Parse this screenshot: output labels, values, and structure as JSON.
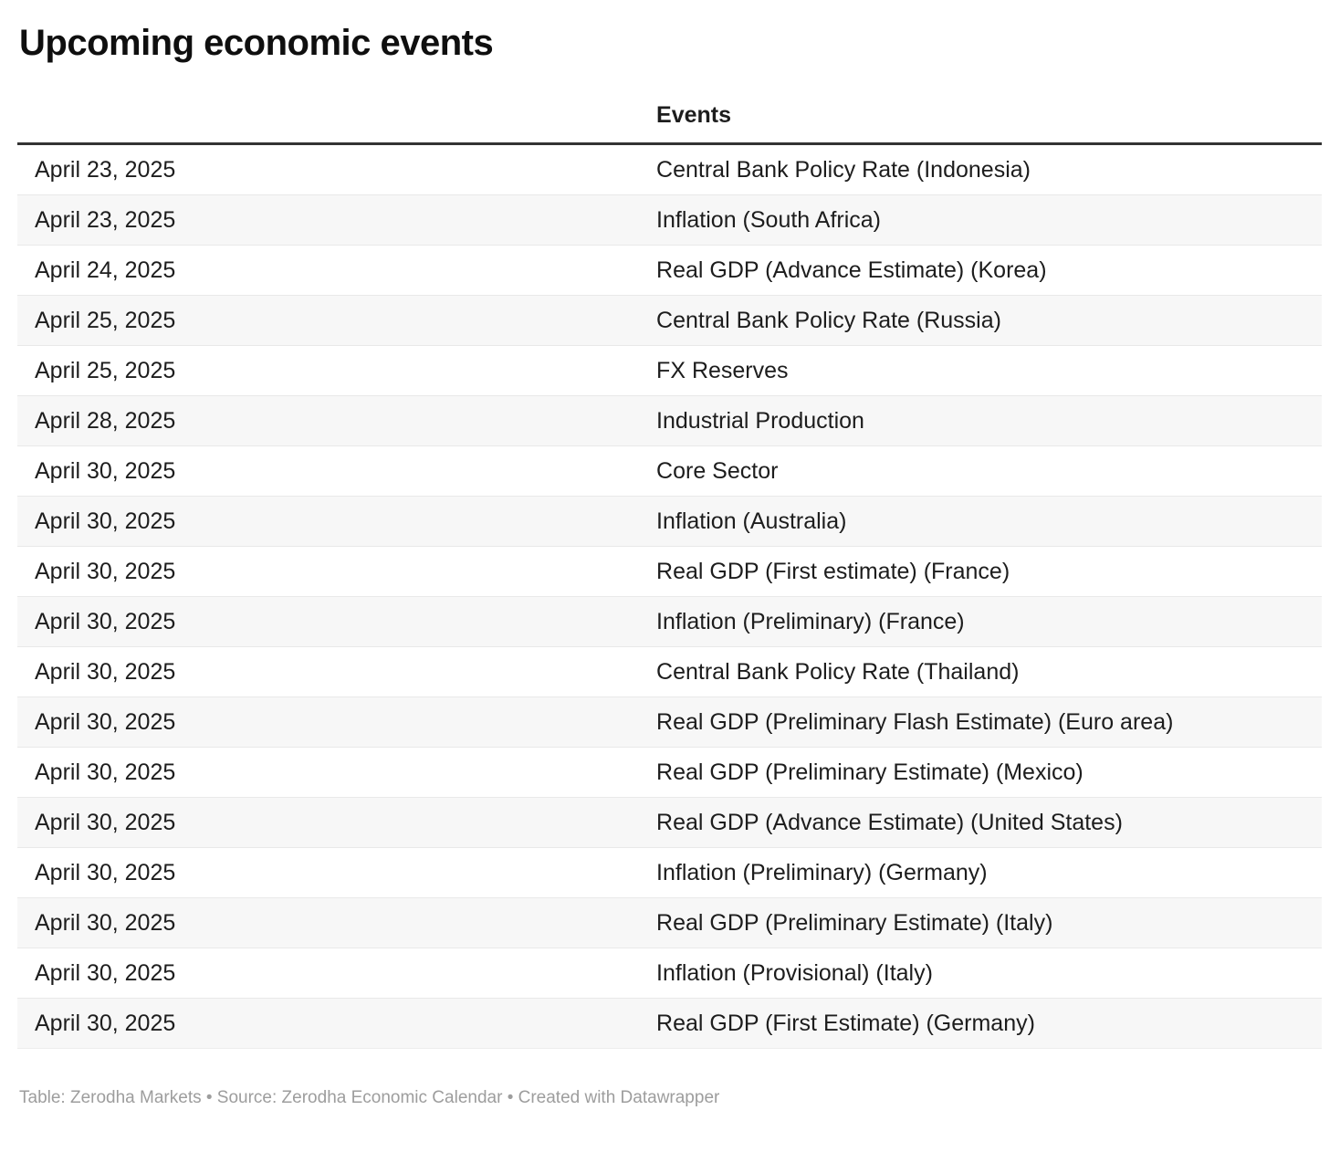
{
  "title": "Upcoming economic events",
  "chart_data": {
    "type": "table",
    "title": "Upcoming economic events",
    "columns": [
      "",
      "Events"
    ],
    "rows": [
      [
        "April 23, 2025",
        "Central Bank Policy Rate (Indonesia)"
      ],
      [
        "April 23, 2025",
        "Inflation (South Africa)"
      ],
      [
        "April 24, 2025",
        "Real GDP (Advance Estimate) (Korea)"
      ],
      [
        "April 25, 2025",
        "Central Bank Policy Rate (Russia)"
      ],
      [
        "April 25, 2025",
        "FX Reserves"
      ],
      [
        "April 28, 2025",
        "Industrial Production"
      ],
      [
        "April 30, 2025",
        "Core Sector"
      ],
      [
        "April 30, 2025",
        "Inflation (Australia)"
      ],
      [
        "April 30, 2025",
        "Real GDP (First estimate) (France)"
      ],
      [
        "April 30, 2025",
        "Inflation (Preliminary) (France)"
      ],
      [
        "April 30, 2025",
        "Central Bank Policy Rate (Thailand)"
      ],
      [
        "April 30, 2025",
        "Real GDP (Preliminary Flash Estimate) (Euro area)"
      ],
      [
        "April 30, 2025",
        "Real GDP (Preliminary Estimate) (Mexico)"
      ],
      [
        "April 30, 2025",
        "Real GDP (Advance Estimate) (United States)"
      ],
      [
        "April 30, 2025",
        "Inflation (Preliminary) (Germany)"
      ],
      [
        "April 30, 2025",
        "Real GDP (Preliminary Estimate) (Italy)"
      ],
      [
        "April 30, 2025",
        "Inflation (Provisional) (Italy)"
      ],
      [
        "April 30, 2025",
        "Real GDP (First Estimate) (Germany)"
      ]
    ],
    "layout": {
      "zebra_striping": true,
      "date_column_header_empty": true
    }
  },
  "footer": {
    "text": "Table: Zerodha Markets • Source: Zerodha Economic Calendar • Created with Datawrapper"
  },
  "colors": {
    "title_text": "#0f0f0f",
    "body_text": "#1d1d1d",
    "header_rule": "#333333",
    "row_stripe": "#f7f7f7",
    "row_border": "#e9e9e9",
    "footer_text": "#9d9d9d",
    "background": "#ffffff"
  }
}
